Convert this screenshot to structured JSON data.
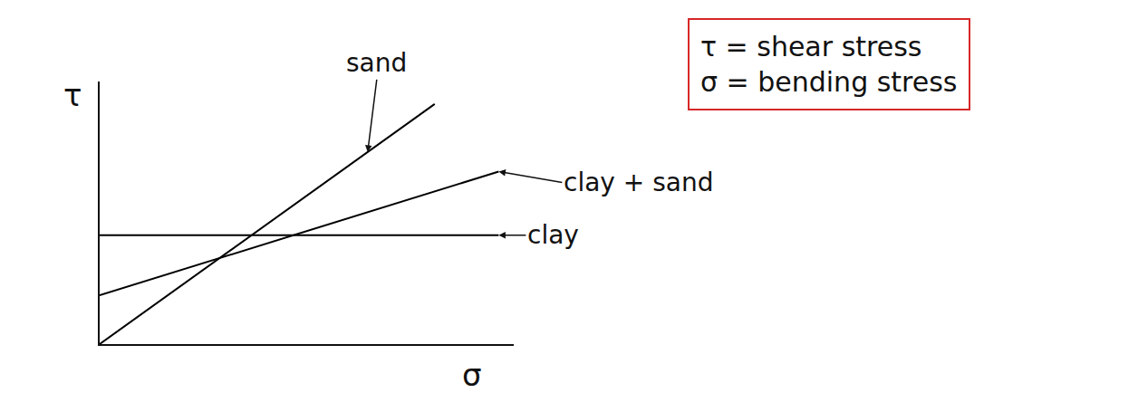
{
  "chart_data": {
    "type": "line",
    "x_label": "σ",
    "y_label": "τ",
    "xlim": [
      0,
      11
    ],
    "ylim": [
      0,
      7
    ],
    "xticks": [],
    "yticks": [],
    "tick_labels": false,
    "grid": false,
    "series": [
      {
        "name": "sand",
        "color": "#000000",
        "x": [
          0,
          8.9
        ],
        "values": [
          0,
          6.4
        ]
      },
      {
        "name": "clay + sand",
        "color": "#000000",
        "x": [
          0,
          10.6
        ],
        "values": [
          1.3,
          4.6
        ]
      },
      {
        "name": "clay",
        "color": "#000000",
        "x": [
          0,
          10.6
        ],
        "values": [
          2.9,
          2.9
        ]
      }
    ],
    "annotations": [
      "τ = shear stress",
      "σ = bending stress"
    ]
  }
}
